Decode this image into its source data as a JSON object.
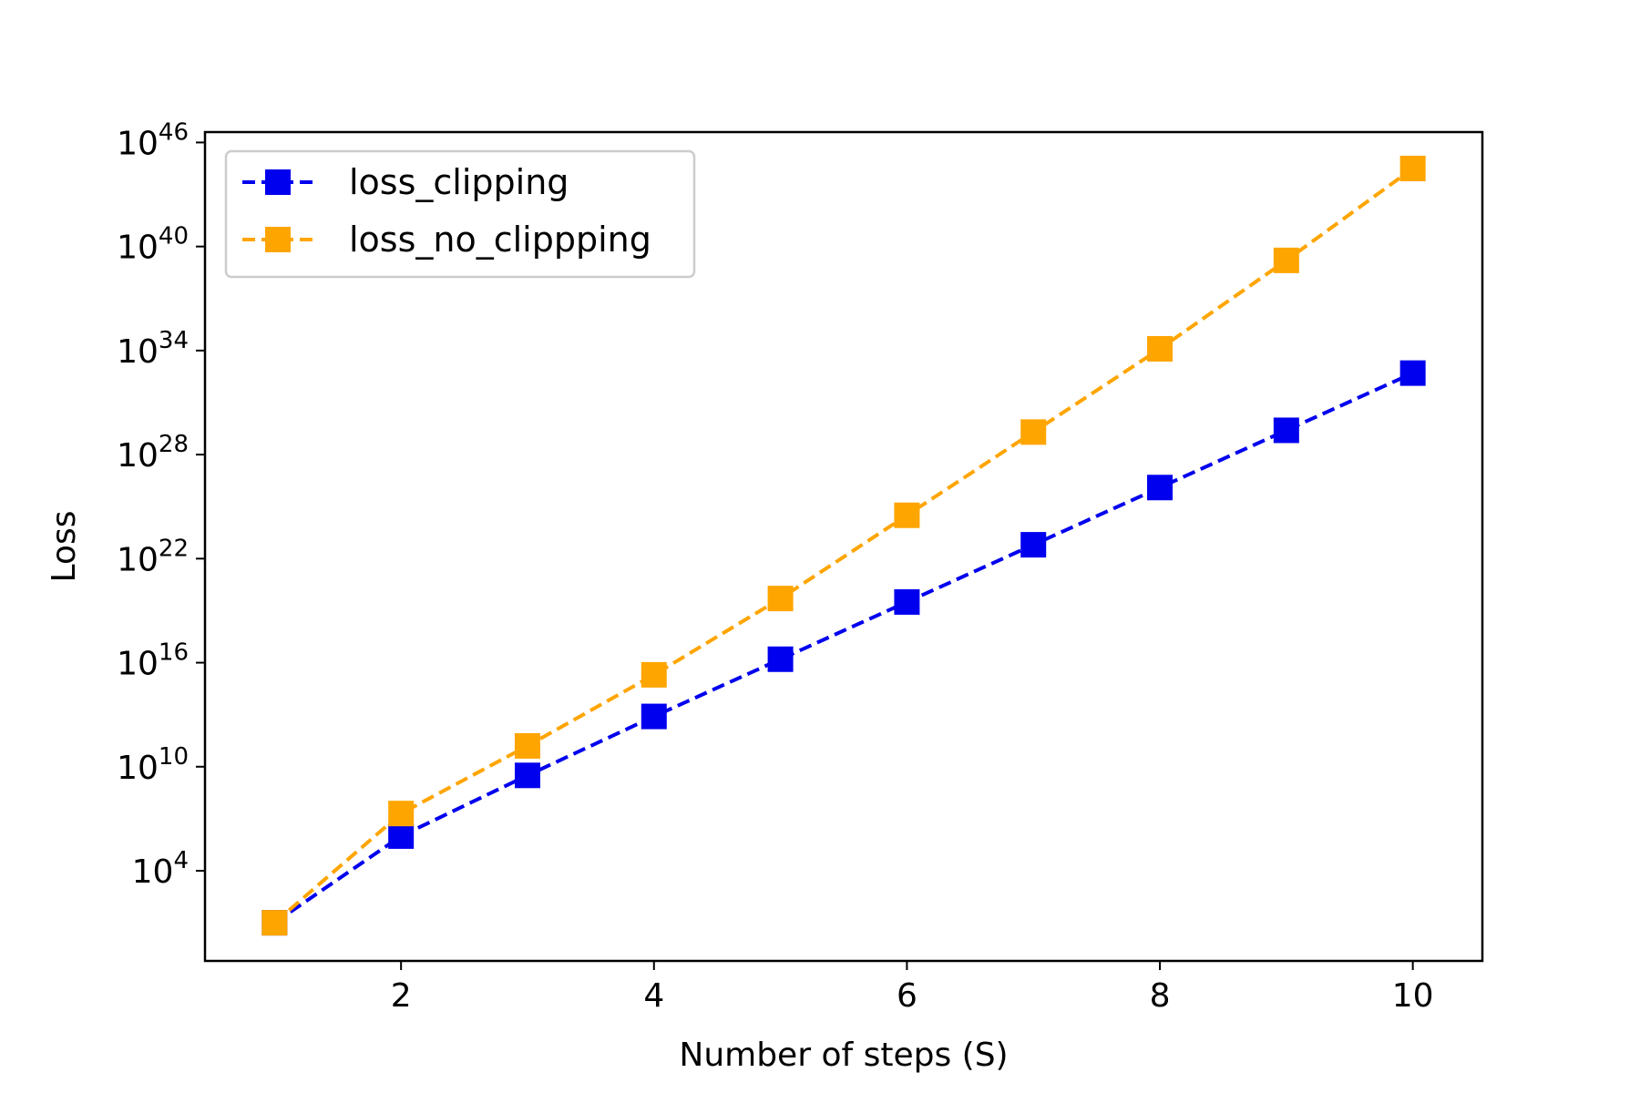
{
  "chart_data": {
    "type": "line",
    "xlabel": "Number of steps (S)",
    "ylabel": "Loss",
    "x": [
      1,
      2,
      3,
      4,
      5,
      6,
      7,
      8,
      9,
      10
    ],
    "xlim": [
      0.45,
      10.55
    ],
    "x_ticks": [
      2,
      4,
      6,
      8,
      10
    ],
    "y_scale": "log",
    "ylim_log10": [
      -1.2,
      46.6
    ],
    "y_tick_exponents": [
      4,
      10,
      16,
      22,
      28,
      34,
      40,
      46
    ],
    "y_tick_base": "10",
    "grid": false,
    "legend_position": "upper-left",
    "series": [
      {
        "name": "loss_clipping",
        "color": "#0000ee",
        "marker": "square",
        "linestyle": "dashed",
        "log10_values": [
          1.0,
          6.0,
          9.5,
          12.9,
          16.2,
          19.5,
          22.8,
          26.1,
          29.4,
          32.7
        ]
      },
      {
        "name": "loss_no_clippping",
        "color": "#ffa500",
        "marker": "square",
        "linestyle": "dashed",
        "log10_values": [
          1.0,
          7.3,
          11.2,
          15.3,
          19.7,
          24.5,
          29.3,
          34.1,
          39.2,
          44.5
        ]
      }
    ]
  }
}
